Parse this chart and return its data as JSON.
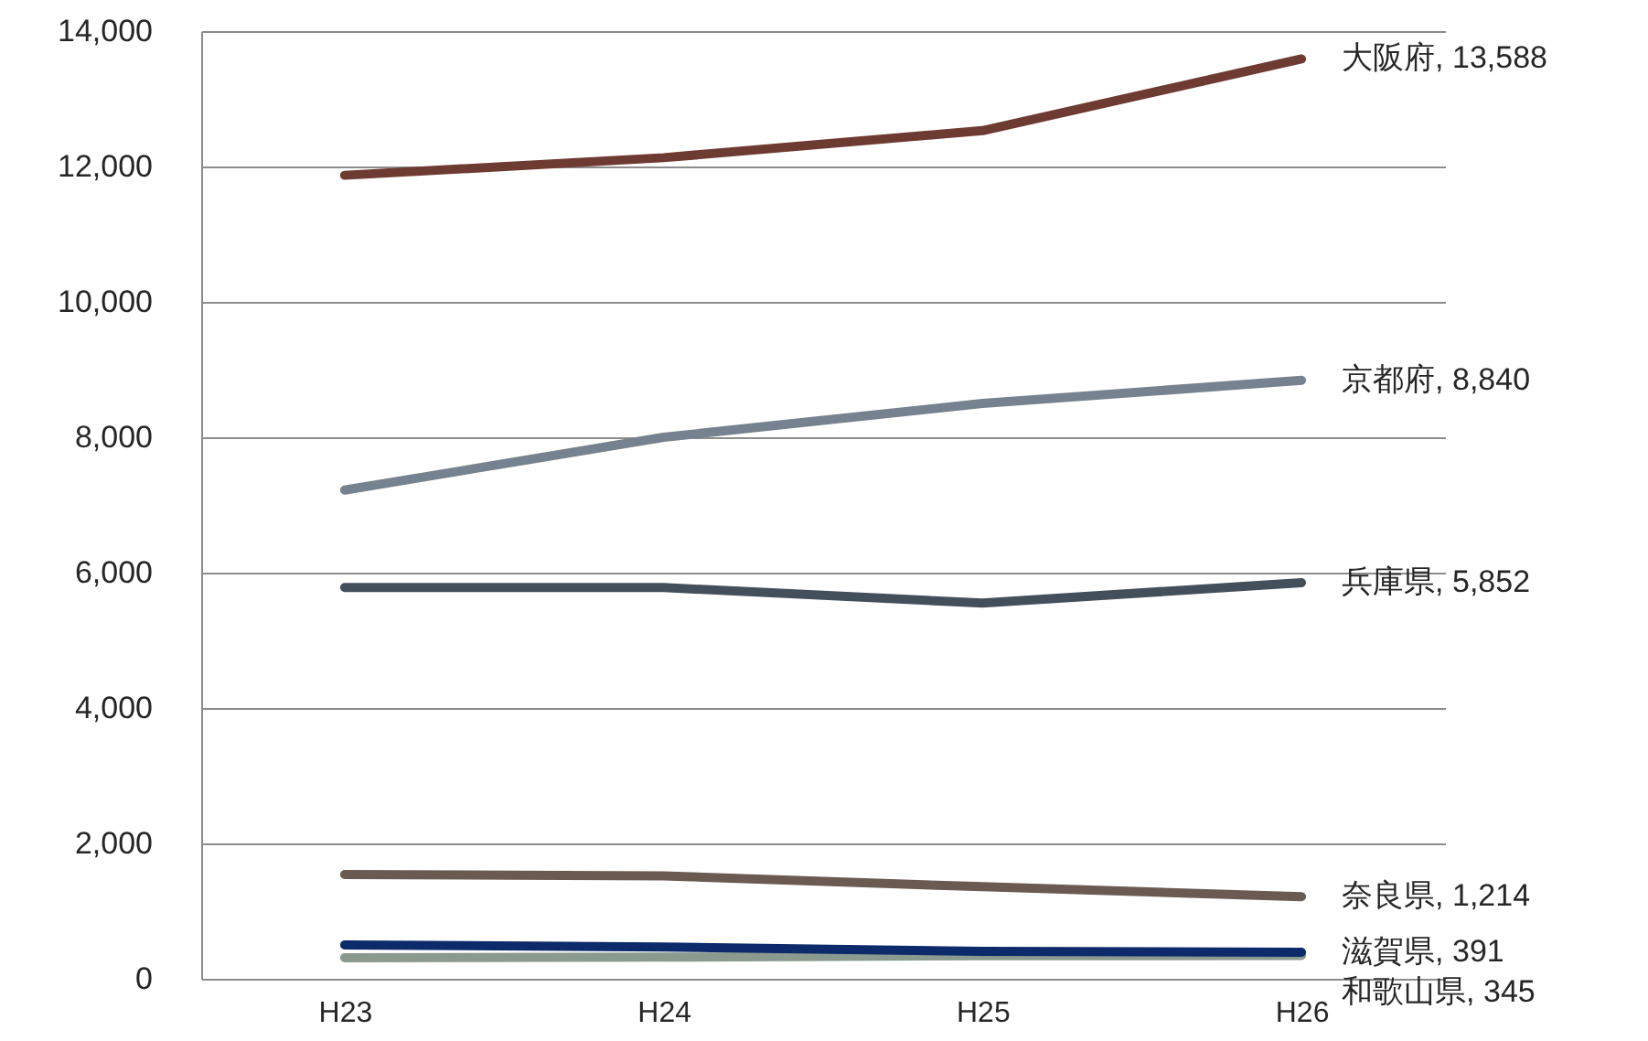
{
  "chart_data": {
    "type": "line",
    "categories": [
      "H23",
      "H24",
      "H25",
      "H26"
    ],
    "series": [
      {
        "color": "#6e3b32",
        "values": [
          11870,
          12130,
          12530,
          13588
        ]
      },
      {
        "color": "#76828f",
        "values": [
          7220,
          8000,
          8500,
          8840
        ]
      },
      {
        "color": "#444f5c",
        "values": [
          5780,
          5780,
          5550,
          5852
        ]
      },
      {
        "color": "#6b5a52",
        "values": [
          1540,
          1520,
          1360,
          1214
        ]
      },
      {
        "color": "#8a9a8e",
        "values": [
          310,
          320,
          340,
          345
        ]
      },
      {
        "color": "#0d2a6b",
        "values": [
          500,
          470,
          405,
          391
        ]
      }
    ],
    "ylim": [
      0,
      14000
    ],
    "yticks": [
      0,
      {
        "value": 2000,
        "label": "2,000"
      },
      {
        "value": 4000,
        "label": "4,000"
      },
      {
        "value": 6000,
        "label": "6,000"
      },
      {
        "value": 8000,
        "label": "8,000"
      },
      {
        "value": 10000,
        "label": "10,000"
      },
      {
        "value": 12000,
        "label": "12,000"
      },
      {
        "value": 14000,
        "label": "14,000"
      }
    ],
    "grid": "y",
    "annotations": [
      {
        "text": "大阪府, 13,588",
        "x": "H26",
        "y": 13588
      },
      {
        "text": "京都府, 8,840",
        "x": "H26",
        "y": 8840
      },
      {
        "text": "兵庫県, 5,852",
        "x": "H26",
        "y": 5852
      },
      {
        "text": "奈良県, 1,214",
        "x": "H26",
        "y": 1214
      },
      {
        "text": "滋賀県, 391",
        "x": "H26",
        "y": 391
      },
      {
        "text": "和歌山県, 345",
        "x": "H26",
        "y": 345
      }
    ]
  }
}
